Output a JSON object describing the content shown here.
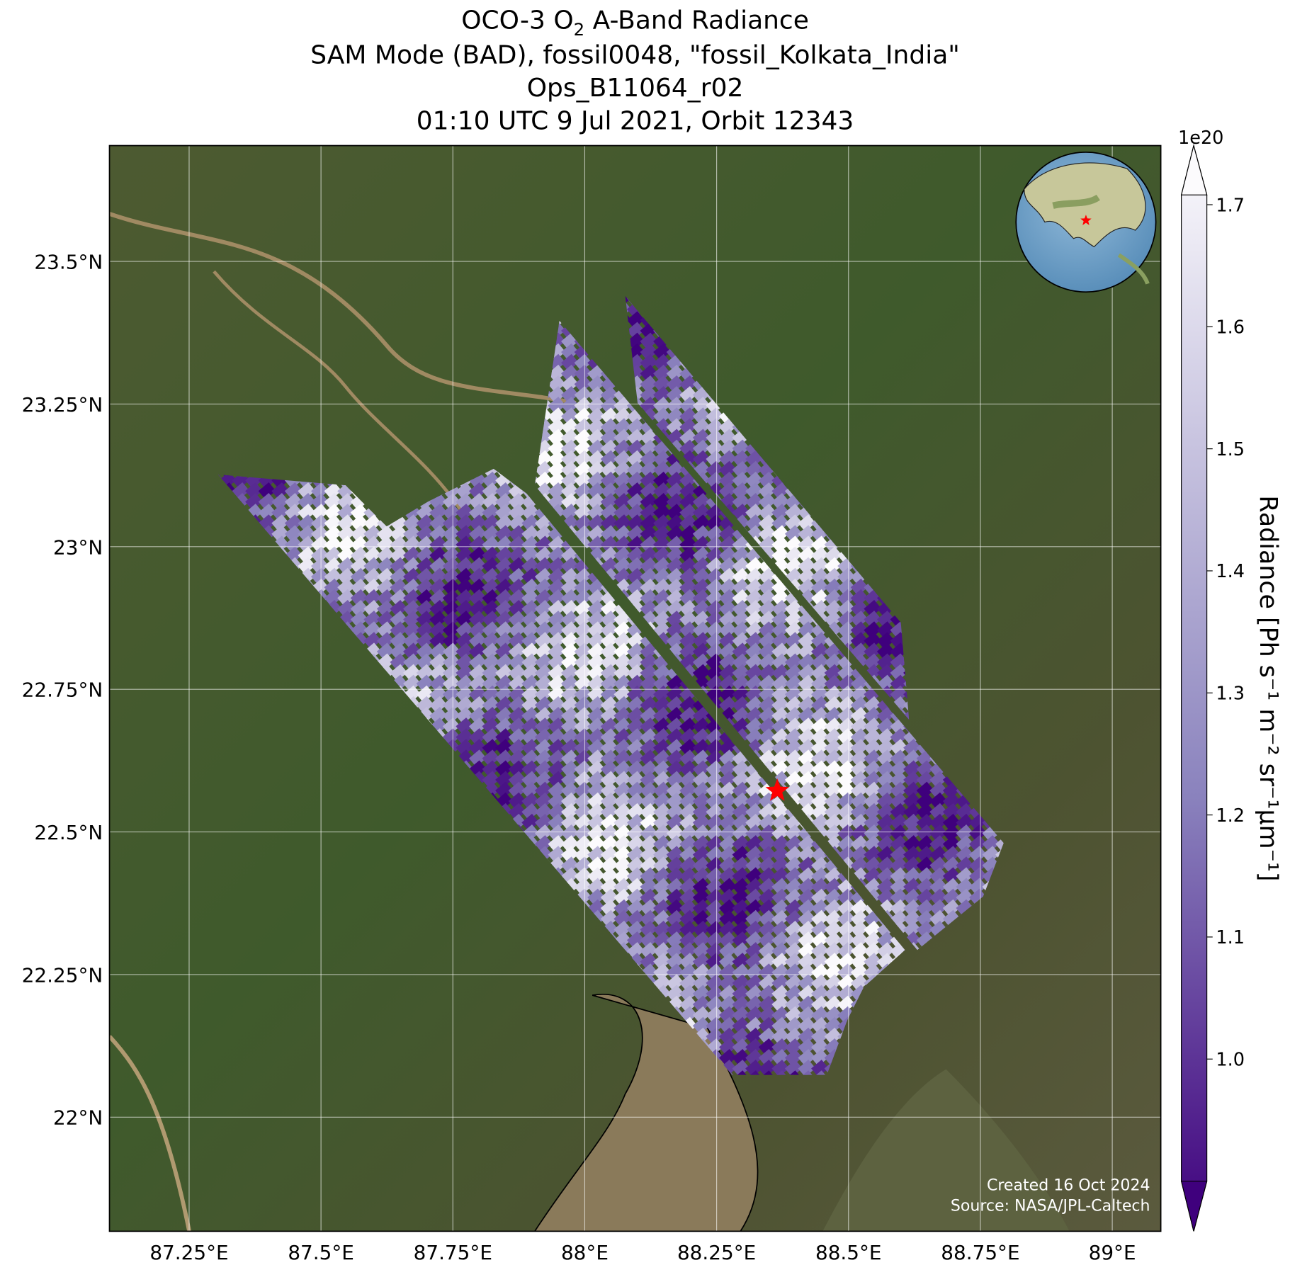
{
  "title": {
    "line1": {
      "text": "OCO-3 O",
      "sub": "2",
      "rest": " A-Band Radiance"
    },
    "line2": "SAM Mode (BAD), fossil0048, \"fossil_Kolkata_India\"",
    "line3": "Ops_B11064_r02",
    "line4": "01:10 UTC 9 Jul 2021, Orbit 12343"
  },
  "map": {
    "xlim": [
      87.099,
      89.092
    ],
    "ylim": [
      21.8,
      23.703
    ],
    "xticks": [
      {
        "value": 87.25,
        "label": "87.25°E"
      },
      {
        "value": 87.5,
        "label": "87.5°E"
      },
      {
        "value": 87.75,
        "label": "87.75°E"
      },
      {
        "value": 88,
        "label": "88°E"
      },
      {
        "value": 88.25,
        "label": "88.25°E"
      },
      {
        "value": 88.5,
        "label": "88.5°E"
      },
      {
        "value": 88.75,
        "label": "88.75°E"
      },
      {
        "value": 89,
        "label": "89°E"
      }
    ],
    "yticks": [
      {
        "value": 22,
        "label": "22°N"
      },
      {
        "value": 22.25,
        "label": "22.25°N"
      },
      {
        "value": 22.5,
        "label": "22.5°N"
      },
      {
        "value": 22.75,
        "label": "22.75°N"
      },
      {
        "value": 23,
        "label": "23°N"
      },
      {
        "value": 23.25,
        "label": "23.25°N"
      },
      {
        "value": 23.5,
        "label": "23.5°N"
      }
    ],
    "grid": true
  },
  "site": {
    "lon": 88.365,
    "lat": 22.572,
    "color": "#ff0000"
  },
  "colorbar": {
    "label": "Radiance [Ph s⁻¹ m⁻² sr⁻¹μm⁻¹]",
    "offset_label": "1e20",
    "lim": [
      0.9,
      1.708
    ],
    "ticks": [
      {
        "value": 1,
        "label": "1.0"
      },
      1.1,
      1.2,
      1.3,
      1.4,
      1.5,
      1.6,
      1.7
    ],
    "colors": [
      "#3f007d",
      "#fcfbfd"
    ]
  },
  "footer": {
    "created": "Created 16 Oct 2024",
    "source": "Source: NASA/JPL-Caltech"
  }
}
